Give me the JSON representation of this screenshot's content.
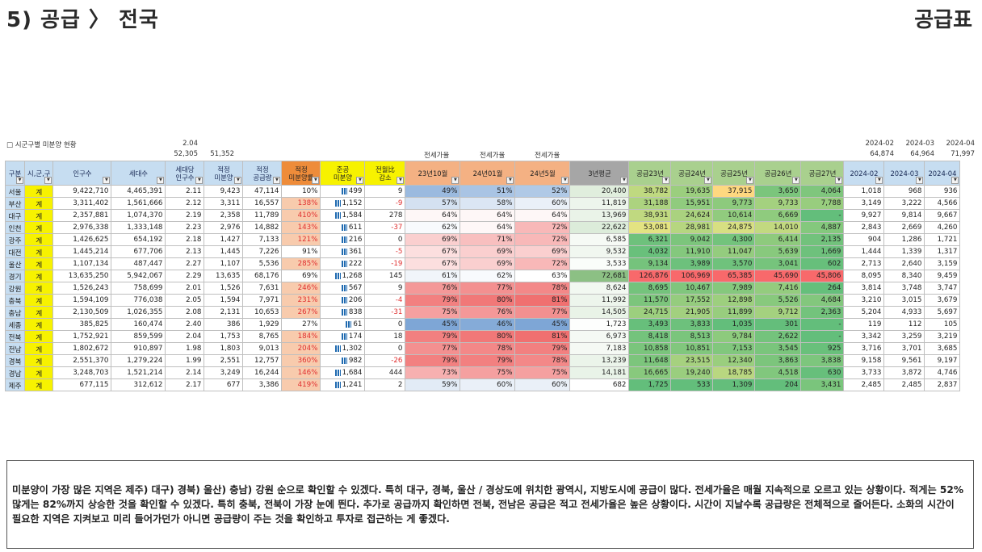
{
  "title": "5) 공급 〉 전국",
  "title_right": "공급표",
  "sheet_label": "□ 시군구별 미분양 현황",
  "top_numbers": {
    "hh_ratio": "2.04",
    "hh_sum": "52,305",
    "unsold_sum": "51,352",
    "m1_label": "2024-02",
    "m1_value": "64,874",
    "m2_label": "2024-03",
    "m2_value": "64,964",
    "m3_label": "2024-04",
    "m3_value": "71,997"
  },
  "rent_labels": [
    "전세가율",
    "전세가율",
    "전세가율"
  ],
  "headers": [
    "구분",
    "시,군,구",
    "인구수",
    "세대수",
    "세대당\n인구수",
    "적정\n미분양",
    "적정\n공급량",
    "적정\n미분양률",
    "준공\n미분양",
    "전월比\n감소",
    "23년10월",
    "24년01월",
    "24년5월",
    "3년평균",
    "공급23년",
    "공급24년",
    "공급25년",
    "공급26년",
    "공급27년",
    "2024-02",
    "2024-03",
    "2024-04"
  ],
  "rows": [
    [
      "서울",
      "계",
      "9,422,710",
      "4,465,391",
      "2.11",
      "9,423",
      "47,114",
      "10%",
      "499",
      "9",
      "49%",
      "51%",
      "52%",
      "20,400",
      "38,782",
      "19,635",
      "37,915",
      "3,650",
      "4,064",
      "1,018",
      "968",
      "936"
    ],
    [
      "부산",
      "계",
      "3,311,402",
      "1,561,666",
      "2.12",
      "3,311",
      "16,557",
      "138%",
      "1,152",
      "-9",
      "57%",
      "58%",
      "60%",
      "11,819",
      "31,188",
      "15,951",
      "9,773",
      "9,733",
      "7,788",
      "3,149",
      "3,222",
      "4,566"
    ],
    [
      "대구",
      "계",
      "2,357,881",
      "1,074,370",
      "2.19",
      "2,358",
      "11,789",
      "410%",
      "1,584",
      "278",
      "64%",
      "64%",
      "64%",
      "13,969",
      "38,931",
      "24,624",
      "10,614",
      "6,669",
      "-",
      "9,927",
      "9,814",
      "9,667"
    ],
    [
      "인천",
      "계",
      "2,976,338",
      "1,333,148",
      "2.23",
      "2,976",
      "14,882",
      "143%",
      "611",
      "-37",
      "62%",
      "64%",
      "72%",
      "22,622",
      "53,081",
      "28,981",
      "24,875",
      "14,010",
      "4,887",
      "2,843",
      "2,669",
      "4,260"
    ],
    [
      "광주",
      "계",
      "1,426,625",
      "654,192",
      "2.18",
      "1,427",
      "7,133",
      "121%",
      "216",
      "0",
      "69%",
      "71%",
      "72%",
      "6,585",
      "6,321",
      "9,042",
      "4,300",
      "6,414",
      "2,135",
      "904",
      "1,286",
      "1,721"
    ],
    [
      "대전",
      "계",
      "1,445,214",
      "677,706",
      "2.13",
      "1,445",
      "7,226",
      "91%",
      "361",
      "-5",
      "67%",
      "69%",
      "69%",
      "9,532",
      "4,032",
      "11,910",
      "11,047",
      "5,639",
      "1,669",
      "1,444",
      "1,339",
      "1,317"
    ],
    [
      "울산",
      "계",
      "1,107,134",
      "487,447",
      "2.27",
      "1,107",
      "5,536",
      "285%",
      "222",
      "-19",
      "67%",
      "69%",
      "72%",
      "3,533",
      "9,134",
      "3,989",
      "3,570",
      "3,041",
      "602",
      "2,713",
      "2,640",
      "3,159"
    ],
    [
      "경기",
      "계",
      "13,635,250",
      "5,942,067",
      "2.29",
      "13,635",
      "68,176",
      "69%",
      "1,268",
      "145",
      "61%",
      "62%",
      "63%",
      "72,681",
      "126,876",
      "106,969",
      "65,385",
      "45,690",
      "45,806",
      "8,095",
      "8,340",
      "9,459"
    ],
    [
      "강원",
      "계",
      "1,526,243",
      "758,699",
      "2.01",
      "1,526",
      "7,631",
      "246%",
      "567",
      "9",
      "76%",
      "77%",
      "78%",
      "8,624",
      "8,695",
      "10,467",
      "7,989",
      "7,416",
      "264",
      "3,814",
      "3,748",
      "3,747"
    ],
    [
      "충북",
      "계",
      "1,594,109",
      "776,038",
      "2.05",
      "1,594",
      "7,971",
      "231%",
      "206",
      "-4",
      "79%",
      "80%",
      "81%",
      "11,992",
      "11,570",
      "17,552",
      "12,898",
      "5,526",
      "4,684",
      "3,210",
      "3,015",
      "3,679"
    ],
    [
      "충남",
      "계",
      "2,130,509",
      "1,026,355",
      "2.08",
      "2,131",
      "10,653",
      "267%",
      "838",
      "-31",
      "75%",
      "76%",
      "77%",
      "14,505",
      "24,715",
      "21,905",
      "11,899",
      "9,712",
      "2,363",
      "5,204",
      "4,933",
      "5,697"
    ],
    [
      "세종",
      "계",
      "385,825",
      "160,474",
      "2.40",
      "386",
      "1,929",
      "27%",
      "61",
      "0",
      "45%",
      "46%",
      "45%",
      "1,723",
      "3,493",
      "3,833",
      "1,035",
      "301",
      "-",
      "119",
      "112",
      "105"
    ],
    [
      "전북",
      "계",
      "1,752,921",
      "859,599",
      "2.04",
      "1,753",
      "8,765",
      "184%",
      "174",
      "18",
      "79%",
      "80%",
      "81%",
      "6,973",
      "8,418",
      "8,513",
      "9,784",
      "2,622",
      "-",
      "3,342",
      "3,259",
      "3,219"
    ],
    [
      "전남",
      "계",
      "1,802,672",
      "910,897",
      "1.98",
      "1,803",
      "9,013",
      "204%",
      "1,302",
      "0",
      "77%",
      "78%",
      "79%",
      "7,183",
      "10,858",
      "10,851",
      "7,153",
      "3,545",
      "925",
      "3,716",
      "3,701",
      "3,685"
    ],
    [
      "경북",
      "계",
      "2,551,370",
      "1,279,224",
      "1.99",
      "2,551",
      "12,757",
      "360%",
      "982",
      "-26",
      "79%",
      "79%",
      "78%",
      "13,239",
      "11,648",
      "23,515",
      "12,340",
      "3,863",
      "3,838",
      "9,158",
      "9,561",
      "9,197"
    ],
    [
      "경남",
      "계",
      "3,248,703",
      "1,521,214",
      "2.14",
      "3,249",
      "16,244",
      "146%",
      "1,684",
      "444",
      "73%",
      "75%",
      "75%",
      "14,181",
      "16,665",
      "19,240",
      "18,785",
      "4,518",
      "630",
      "3,733",
      "3,872",
      "4,746"
    ],
    [
      "제주",
      "계",
      "677,115",
      "312,612",
      "2.17",
      "677",
      "3,386",
      "419%",
      "1,241",
      "2",
      "59%",
      "60%",
      "60%",
      "682",
      "1,725",
      "533",
      "1,309",
      "204",
      "3,431",
      "2,485",
      "2,485",
      "2,837"
    ]
  ],
  "note": "미분양이 가장 많은 지역은 제주) 대구) 경북) 울산) 충남) 강원 순으로 확인할 수 있겠다. 특히 대구, 경북, 울산 / 경상도에 위치한 광역시, 지방도시에 공급이 많다. 전세가율은 매월 지속적으로 오르고 있는 상황이다. 적게는 52% 많게는 82%까지 상승한 것을 확인할 수 있겠다. 특히 충북, 전북이 가장 눈에 띈다. 추가로 공급까지 확인하면 전북, 전남은 공급은 적고 전세가율은 높은 상황이다. 시간이 지날수록 공급량은 전체적으로 줄어든다. 소화의 시간이 필요한 지역은 지켜보고 미리 들어가던가 아니면 공급량이 주는 것을 확인하고 투자로 접근하는 게 좋겠다.",
  "colors": {
    "header_blue": "#c6ddf1",
    "header_orange": "#ee8c3a",
    "header_yellow": "#f7f200",
    "header_salmon": "#f4b183",
    "header_green": "#a9d08e",
    "header_gray": "#a6a6a6",
    "negative": "#e03030"
  }
}
